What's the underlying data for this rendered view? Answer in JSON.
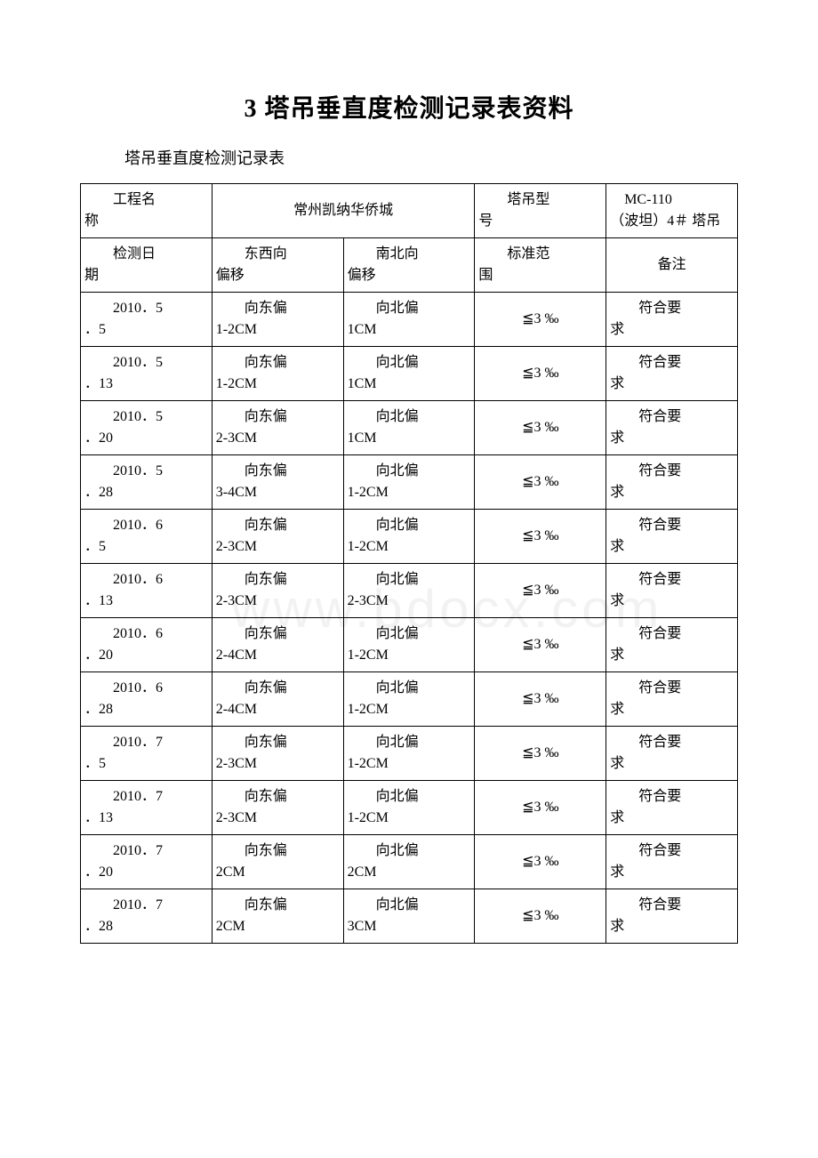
{
  "page": {
    "title": "3 塔吊垂直度检测记录表资料",
    "subtitle": "塔吊垂直度检测记录表",
    "watermark": "www.bdocx.com"
  },
  "header": {
    "project_label": "工程名称",
    "project_value": "常州凯纳华侨城",
    "model_label": "塔吊型号",
    "model_value": "MC-110（波坦）4＃塔吊"
  },
  "columns": {
    "date_label": "检测日期",
    "ew_label": "东西向偏移",
    "ns_label": "南北向偏移",
    "std_label": "标准范围",
    "remark_label": "备注"
  },
  "rows": [
    {
      "date": "2010．5．5",
      "ew": "向东偏1-2CM",
      "ns": "向北偏1CM",
      "std": "≦3 ‰",
      "remark": "符合要求"
    },
    {
      "date": "2010．5．13",
      "ew": "向东偏1-2CM",
      "ns": "向北偏1CM",
      "std": "≦3 ‰",
      "remark": "符合要求"
    },
    {
      "date": "2010．5．20",
      "ew": "向东偏2-3CM",
      "ns": "向北偏1CM",
      "std": "≦3 ‰",
      "remark": "符合要求"
    },
    {
      "date": "2010．5．28",
      "ew": "向东偏3-4CM",
      "ns": "向北偏1-2CM",
      "std": "≦3 ‰",
      "remark": "符合要求"
    },
    {
      "date": "2010．6．5",
      "ew": "向东偏2-3CM",
      "ns": "向北偏1-2CM",
      "std": "≦3 ‰",
      "remark": "符合要求"
    },
    {
      "date": "2010．6．13",
      "ew": "向东偏2-3CM",
      "ns": "向北偏2-3CM",
      "std": "≦3 ‰",
      "remark": "符合要求"
    },
    {
      "date": "2010．6．20",
      "ew": "向东偏2-4CM",
      "ns": "向北偏1-2CM",
      "std": "≦3 ‰",
      "remark": "符合要求"
    },
    {
      "date": "2010．6．28",
      "ew": "向东偏2-4CM",
      "ns": "向北偏1-2CM",
      "std": "≦3 ‰",
      "remark": "符合要求"
    },
    {
      "date": "2010．7．5",
      "ew": "向东偏2-3CM",
      "ns": "向北偏1-2CM",
      "std": "≦3 ‰",
      "remark": "符合要求"
    },
    {
      "date": "2010．7．13",
      "ew": "向东偏2-3CM",
      "ns": "向北偏1-2CM",
      "std": "≦3 ‰",
      "remark": "符合要求"
    },
    {
      "date": "2010．7．20",
      "ew": "向东偏2CM",
      "ns": "向北偏2CM",
      "std": "≦3 ‰",
      "remark": "符合要求"
    },
    {
      "date": "2010．7．28",
      "ew": "向东偏2CM",
      "ns": "向北偏3CM",
      "std": "≦3 ‰",
      "remark": "符合要求"
    }
  ],
  "style": {
    "title_fontsize": 28,
    "body_fontsize": 16,
    "border_color": "#000000",
    "background_color": "#ffffff",
    "text_color": "#000000",
    "watermark_color": "rgba(0,0,0,0.05)"
  }
}
